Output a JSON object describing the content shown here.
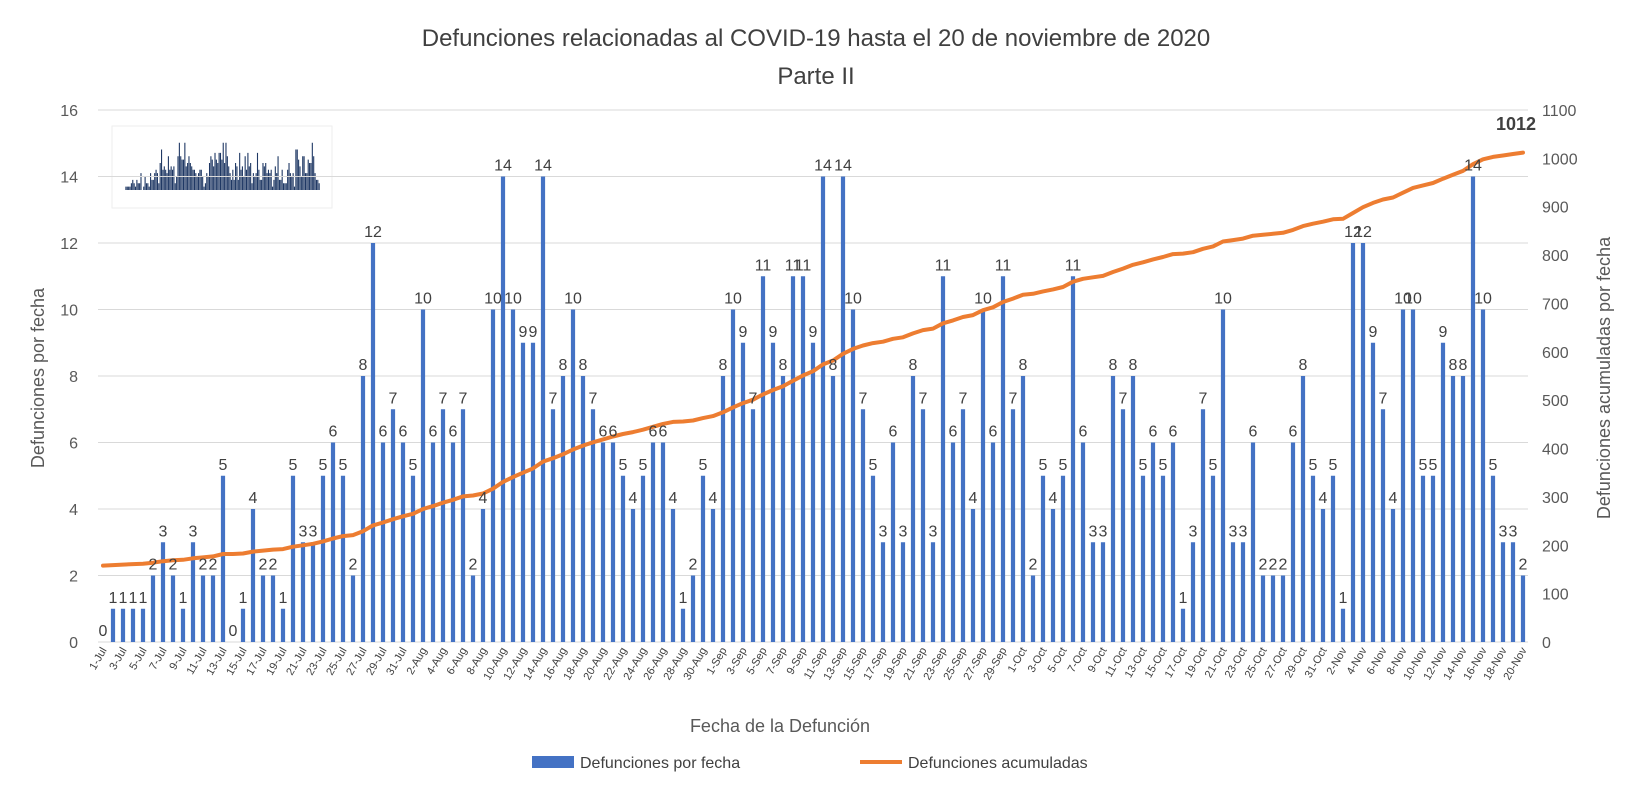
{
  "chart_data": {
    "type": "bar",
    "title": "Defunciones relacionadas al COVID-19 hasta el 20 de noviembre de 2020",
    "subtitle": "Parte II",
    "xlabel": "Fecha de la Defunción",
    "ylabel": "Defunciones por fecha",
    "y2label": "Defunciones acumuladas por fecha",
    "ylim": [
      0,
      16
    ],
    "y2lim": [
      0,
      1100
    ],
    "yticks": [
      "0",
      "2",
      "4",
      "6",
      "8",
      "10",
      "12",
      "14",
      "16"
    ],
    "y2ticks": [
      "0",
      "100",
      "200",
      "300",
      "400",
      "500",
      "600",
      "700",
      "800",
      "900",
      "1000",
      "1100"
    ],
    "grid": true,
    "legend_position": "bottom",
    "colors": {
      "bars": "#4472C4",
      "line": "#ED7D31",
      "grid": "#D9D9D9"
    },
    "final_cumulative_label": "1012",
    "categories": [
      "1-Jul",
      "2-Jul",
      "3-Jul",
      "4-Jul",
      "5-Jul",
      "6-Jul",
      "7-Jul",
      "8-Jul",
      "9-Jul",
      "10-Jul",
      "11-Jul",
      "12-Jul",
      "13-Jul",
      "14-Jul",
      "15-Jul",
      "16-Jul",
      "17-Jul",
      "18-Jul",
      "19-Jul",
      "20-Jul",
      "21-Jul",
      "22-Jul",
      "23-Jul",
      "24-Jul",
      "25-Jul",
      "26-Jul",
      "27-Jul",
      "28-Jul",
      "29-Jul",
      "30-Jul",
      "31-Jul",
      "1-Aug",
      "2-Aug",
      "3-Aug",
      "4-Aug",
      "5-Aug",
      "6-Aug",
      "7-Aug",
      "8-Aug",
      "9-Aug",
      "10-Aug",
      "11-Aug",
      "12-Aug",
      "13-Aug",
      "14-Aug",
      "15-Aug",
      "16-Aug",
      "17-Aug",
      "18-Aug",
      "19-Aug",
      "20-Aug",
      "21-Aug",
      "22-Aug",
      "23-Aug",
      "24-Aug",
      "25-Aug",
      "26-Aug",
      "27-Aug",
      "28-Aug",
      "29-Aug",
      "30-Aug",
      "31-Aug",
      "1-Sep",
      "2-Sep",
      "3-Sep",
      "4-Sep",
      "5-Sep",
      "6-Sep",
      "7-Sep",
      "8-Sep",
      "9-Sep",
      "10-Sep",
      "11-Sep",
      "12-Sep",
      "13-Sep",
      "14-Sep",
      "15-Sep",
      "16-Sep",
      "17-Sep",
      "18-Sep",
      "19-Sep",
      "20-Sep",
      "21-Sep",
      "22-Sep",
      "23-Sep",
      "24-Sep",
      "25-Sep",
      "26-Sep",
      "27-Sep",
      "28-Sep",
      "29-Sep",
      "30-Sep",
      "1-Oct",
      "2-Oct",
      "3-Oct",
      "4-Oct",
      "5-Oct",
      "6-Oct",
      "7-Oct",
      "8-Oct",
      "9-Oct",
      "10-Oct",
      "11-Oct",
      "12-Oct",
      "13-Oct",
      "14-Oct",
      "15-Oct",
      "16-Oct",
      "17-Oct",
      "18-Oct",
      "19-Oct",
      "20-Oct",
      "21-Oct",
      "22-Oct",
      "23-Oct",
      "24-Oct",
      "25-Oct",
      "26-Oct",
      "27-Oct",
      "28-Oct",
      "29-Oct",
      "30-Oct",
      "31-Oct",
      "1-Nov",
      "2-Nov",
      "3-Nov",
      "4-Nov",
      "5-Nov",
      "6-Nov",
      "7-Nov",
      "8-Nov",
      "9-Nov",
      "10-Nov",
      "11-Nov",
      "12-Nov",
      "13-Nov",
      "14-Nov",
      "15-Nov",
      "16-Nov",
      "17-Nov",
      "18-Nov",
      "19-Nov",
      "20-Nov"
    ],
    "series": [
      {
        "name": "Defunciones por fecha",
        "type": "bar",
        "values": [
          0,
          1,
          1,
          1,
          1,
          2,
          3,
          2,
          1,
          3,
          2,
          2,
          5,
          0,
          1,
          4,
          2,
          2,
          1,
          5,
          3,
          3,
          5,
          6,
          5,
          2,
          8,
          12,
          6,
          7,
          6,
          5,
          10,
          6,
          7,
          6,
          7,
          2,
          4,
          10,
          14,
          10,
          9,
          9,
          14,
          7,
          8,
          10,
          8,
          7,
          6,
          6,
          5,
          4,
          5,
          6,
          6,
          4,
          1,
          2,
          5,
          4,
          8,
          10,
          9,
          7,
          11,
          9,
          8,
          11,
          11,
          9,
          14,
          8,
          14,
          10,
          7,
          5,
          3,
          6,
          3,
          8,
          7,
          3,
          11,
          6,
          7,
          4,
          10,
          6,
          11,
          7,
          8,
          2,
          5,
          4,
          5,
          11,
          6,
          3,
          3,
          8,
          7,
          8,
          5,
          6,
          5,
          6,
          1,
          3,
          7,
          5,
          10,
          3,
          3,
          6,
          2,
          2,
          2,
          6,
          8,
          5,
          4,
          5,
          1,
          12,
          12,
          9,
          7,
          4,
          10,
          10,
          5,
          5,
          9,
          8,
          8,
          14,
          10,
          5,
          3,
          3,
          2
        ]
      },
      {
        "name": "Defunciones acumuladas",
        "type": "line",
        "axis": "right",
        "values": [
          158,
          159,
          160,
          161,
          162,
          164,
          167,
          169,
          170,
          173,
          175,
          177,
          182,
          182,
          183,
          187,
          189,
          191,
          192,
          197,
          200,
          203,
          208,
          214,
          219,
          221,
          229,
          241,
          247,
          254,
          260,
          265,
          275,
          281,
          288,
          294,
          301,
          303,
          307,
          317,
          331,
          341,
          350,
          359,
          373,
          380,
          388,
          398,
          406,
          413,
          419,
          425,
          430,
          434,
          439,
          445,
          451,
          455,
          456,
          458,
          463,
          467,
          475,
          485,
          494,
          501,
          512,
          521,
          529,
          540,
          551,
          560,
          574,
          582,
          596,
          606,
          613,
          618,
          621,
          627,
          630,
          638,
          645,
          648,
          659,
          665,
          672,
          676,
          686,
          692,
          703,
          710,
          718,
          720,
          725,
          729,
          734,
          745,
          751,
          754,
          757,
          765,
          772,
          780,
          785,
          791,
          796,
          802,
          803,
          806,
          813,
          818,
          828,
          831,
          834,
          840,
          842,
          844,
          846,
          852,
          860,
          865,
          869,
          874,
          875,
          887,
          899,
          908,
          915,
          919,
          929,
          939,
          944,
          949,
          958,
          966,
          974,
          988,
          998,
          1003,
          1006,
          1009,
          1012
        ]
      }
    ],
    "x_tick_labels": [
      "1-Jul",
      "3-Jul",
      "5-Jul",
      "7-Jul",
      "9-Jul",
      "11-Jul",
      "13-Jul",
      "15-Jul",
      "17-Jul",
      "19-Jul",
      "21-Jul",
      "23-Jul",
      "25-Jul",
      "27-Jul",
      "29-Jul",
      "31-Jul",
      "2-Aug",
      "4-Aug",
      "6-Aug",
      "8-Aug",
      "10-Aug",
      "12-Aug",
      "14-Aug",
      "16-Aug",
      "18-Aug",
      "20-Aug",
      "22-Aug",
      "24-Aug",
      "26-Aug",
      "28-Aug",
      "30-Aug",
      "1-Sep",
      "3-Sep",
      "5-Sep",
      "7-Sep",
      "9-Sep",
      "11-Sep",
      "13-Sep",
      "15-Sep",
      "17-Sep",
      "19-Sep",
      "21-Sep",
      "23-Sep",
      "25-Sep",
      "27-Sep",
      "29-Sep",
      "1-Oct",
      "3-Oct",
      "5-Oct",
      "7-Oct",
      "9-Oct",
      "11-Oct",
      "13-Oct",
      "15-Oct",
      "17-Oct",
      "19-Oct",
      "21-Oct",
      "23-Oct",
      "25-Oct",
      "27-Oct",
      "29-Oct",
      "31-Oct",
      "2-Nov",
      "4-Nov",
      "6-Nov",
      "8-Nov",
      "10-Nov",
      "12-Nov",
      "14-Nov",
      "16-Nov",
      "18-Nov",
      "20-Nov"
    ],
    "legend": [
      {
        "label": "Defunciones por fecha",
        "symbol": "bar"
      },
      {
        "label": "Defunciones acumuladas",
        "symbol": "line"
      }
    ]
  }
}
